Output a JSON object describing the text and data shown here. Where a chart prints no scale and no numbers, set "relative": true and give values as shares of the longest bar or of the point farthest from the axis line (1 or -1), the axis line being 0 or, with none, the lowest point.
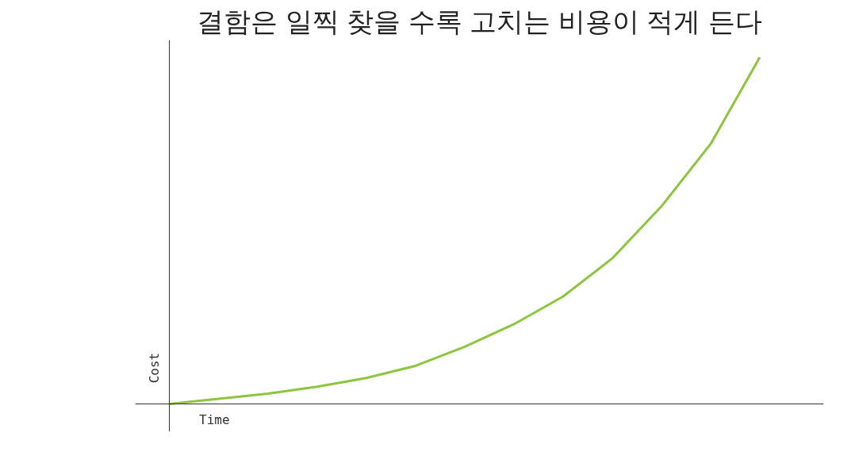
{
  "chart_data": {
    "type": "line",
    "title": "결함은 일찍 찾을 수록 고치는 비용이 적게 든다",
    "xlabel": "Time",
    "ylabel": "Cost",
    "relative": true,
    "categories": [
      null,
      null,
      null,
      null,
      null,
      null,
      null,
      null,
      null,
      null,
      null,
      null,
      null
    ],
    "series": [
      {
        "color": "#8cc63f",
        "values": [
          0,
          0.015,
          0.03,
          0.05,
          0.075,
          0.11,
          0.165,
          0.23,
          0.31,
          0.42,
          0.57,
          0.75,
          1.0
        ]
      }
    ]
  }
}
